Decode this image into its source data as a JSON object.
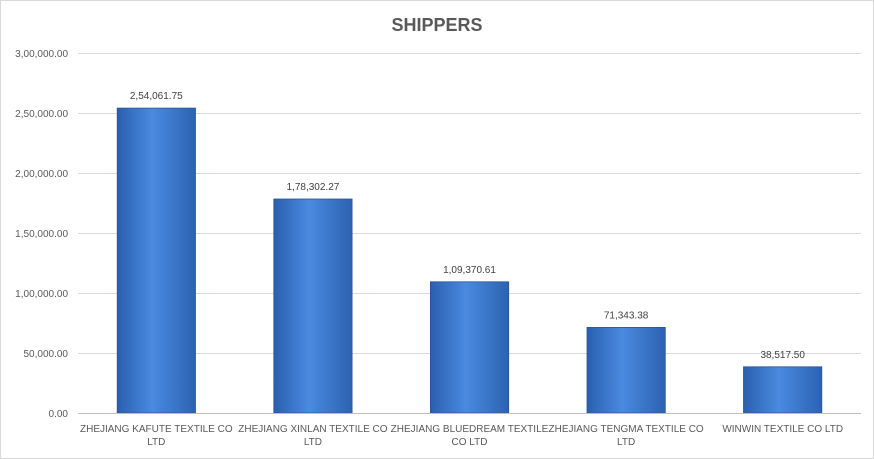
{
  "chart_data": {
    "type": "bar",
    "title": "SHIPPERS",
    "xlabel": "",
    "ylabel": "",
    "categories": [
      "ZHEJIANG KAFUTE TEXTILE CO LTD",
      "ZHEJIANG XINLAN TEXTILE CO LTD",
      "ZHEJIANG BLUEDREAM TEXTILE CO LTD",
      "ZHEJIANG TENGMA TEXTILE CO LTD",
      "WINWIN TEXTILE CO LTD"
    ],
    "category_label_lines": [
      [
        "ZHEJIANG KAFUTE TEXTILE CO",
        "LTD"
      ],
      [
        "ZHEJIANG XINLAN TEXTILE CO",
        "LTD"
      ],
      [
        "ZHEJIANG BLUEDREAM TEXTILE",
        "CO LTD"
      ],
      [
        "ZHEJIANG TENGMA TEXTILE CO",
        "LTD"
      ],
      [
        "WINWIN TEXTILE CO LTD"
      ]
    ],
    "values": [
      254061.75,
      178302.27,
      109370.61,
      71343.38,
      38517.5
    ],
    "data_labels": [
      "2,54,061.75",
      "1,78,302.27",
      "1,09,370.61",
      "71,343.38",
      "38,517.50"
    ],
    "ylim": [
      0,
      300000
    ],
    "yticks": [
      0,
      50000,
      100000,
      150000,
      200000,
      250000,
      300000
    ],
    "ytick_labels": [
      "0.00",
      "50,000.00",
      "1,00,000.00",
      "1,50,000.00",
      "2,00,000.00",
      "2,50,000.00",
      "3,00,000.00"
    ],
    "grid": true,
    "legend": "none",
    "bar_color": "#3c7bd1"
  }
}
